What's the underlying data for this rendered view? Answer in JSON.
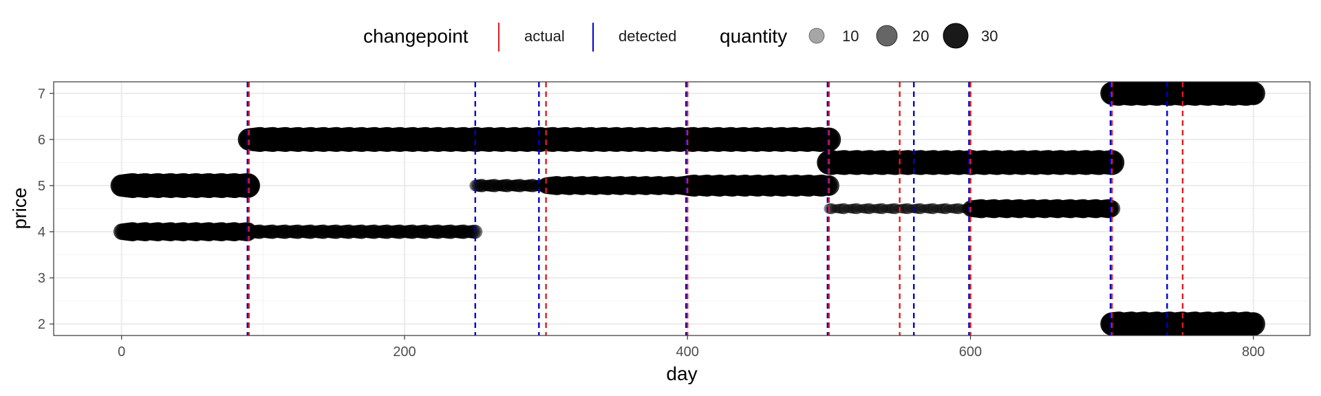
{
  "chart_data": {
    "type": "scatter",
    "xlabel": "day",
    "ylabel": "price",
    "xlim": [
      -48,
      840
    ],
    "ylim": [
      1.75,
      7.25
    ],
    "x_ticks": [
      0,
      200,
      400,
      600,
      800
    ],
    "x_tick_labels": [
      "0",
      "200",
      "400",
      "600",
      "800"
    ],
    "y_ticks": [
      2,
      3,
      4,
      5,
      6,
      7
    ],
    "y_tick_labels": [
      "2",
      "3",
      "4",
      "5",
      "6",
      "7"
    ],
    "grid": true,
    "legend_position": "top",
    "legend": {
      "changepoint": {
        "title": "changepoint",
        "items": [
          {
            "label": "actual",
            "color": "#e41a1c"
          },
          {
            "label": "detected",
            "color": "#0000cc"
          }
        ]
      },
      "quantity": {
        "title": "quantity",
        "items": [
          {
            "label": "10",
            "value": 10
          },
          {
            "label": "20",
            "value": 20
          },
          {
            "label": "30",
            "value": 30
          }
        ]
      }
    },
    "point_series": [
      {
        "x_start": 0,
        "x_end": 90,
        "price": 5,
        "quantity": 30
      },
      {
        "x_start": 0,
        "x_end": 90,
        "price": 4,
        "quantity": 20
      },
      {
        "x_start": 90,
        "x_end": 250,
        "price": 4,
        "quantity": 12
      },
      {
        "x_start": 90,
        "x_end": 500,
        "price": 6,
        "quantity": 30
      },
      {
        "x_start": 250,
        "x_end": 300,
        "price": 5,
        "quantity": 10
      },
      {
        "x_start": 300,
        "x_end": 400,
        "price": 5,
        "quantity": 20
      },
      {
        "x_start": 400,
        "x_end": 500,
        "price": 5,
        "quantity": 25
      },
      {
        "x_start": 500,
        "x_end": 700,
        "price": 5.5,
        "quantity": 30
      },
      {
        "x_start": 500,
        "x_end": 600,
        "price": 4.5,
        "quantity": 6
      },
      {
        "x_start": 600,
        "x_end": 700,
        "price": 4.5,
        "quantity": 20
      },
      {
        "x_start": 700,
        "x_end": 800,
        "price": 7,
        "quantity": 30
      },
      {
        "x_start": 700,
        "x_end": 800,
        "price": 2,
        "quantity": 30
      }
    ],
    "changepoints_actual": [
      90,
      300,
      400,
      500,
      550,
      600,
      700,
      750
    ],
    "changepoints_detected": [
      89,
      250,
      295,
      399,
      499,
      560,
      599,
      699,
      739
    ],
    "colors": {
      "actual": "#e41a1c",
      "detected": "#0000cc",
      "point": "#000000"
    }
  }
}
